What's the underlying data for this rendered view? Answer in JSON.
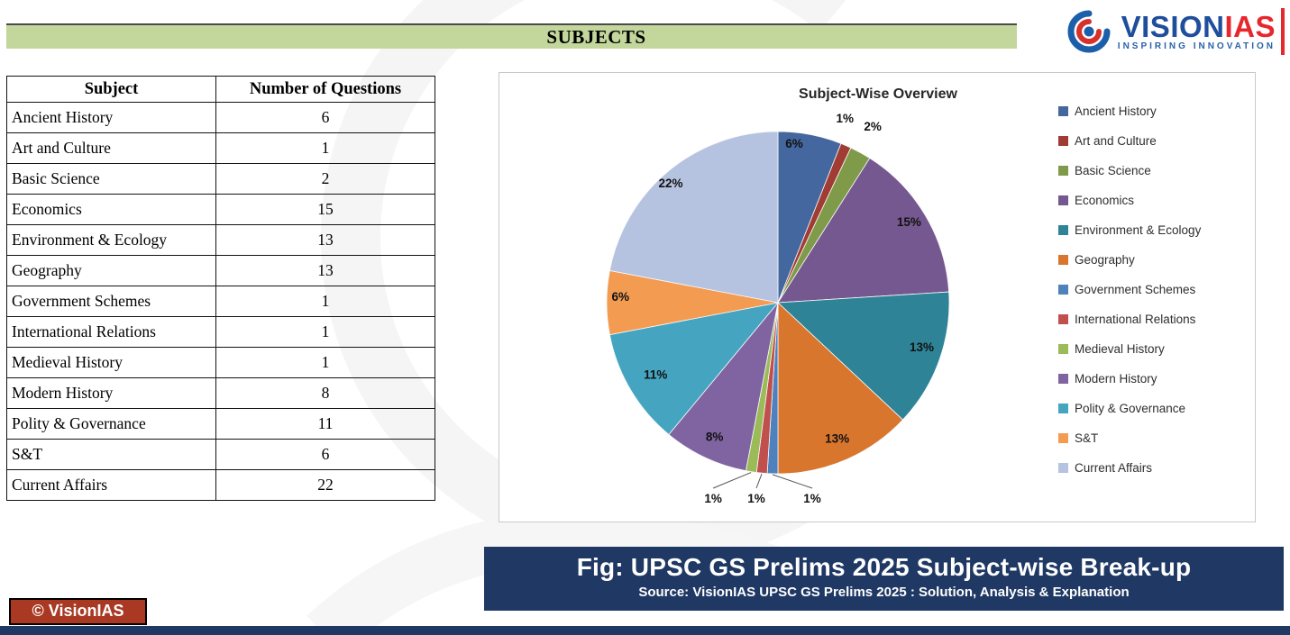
{
  "page": {
    "title": "SUBJECTS",
    "brand": {
      "name_part1": "VISION",
      "name_part2": "IAS",
      "tagline": "INSPIRING INNOVATION"
    },
    "caption": {
      "line1": "Fig: UPSC GS Prelims 2025 Subject-wise Break-up",
      "line2": "Source: VisionIAS UPSC GS Prelims 2025 : Solution, Analysis & Explanation"
    },
    "copyright": "© VisionIAS"
  },
  "table": {
    "headers": [
      "Subject",
      "Number of Questions"
    ],
    "rows": [
      [
        "Ancient History",
        6
      ],
      [
        "Art and Culture",
        1
      ],
      [
        "Basic Science",
        2
      ],
      [
        "Economics",
        15
      ],
      [
        "Environment & Ecology",
        13
      ],
      [
        "Geography",
        13
      ],
      [
        "Government Schemes",
        1
      ],
      [
        "International Relations",
        1
      ],
      [
        "Medieval History",
        1
      ],
      [
        "Modern History",
        8
      ],
      [
        "Polity & Governance",
        11
      ],
      [
        "S&T",
        6
      ],
      [
        "Current Affairs",
        22
      ]
    ]
  },
  "chart_data": {
    "type": "pie",
    "title": "Subject-Wise Overview",
    "categories": [
      "Ancient History",
      "Art and Culture",
      "Basic Science",
      "Economics",
      "Environment & Ecology",
      "Geography",
      "Government Schemes",
      "International Relations",
      "Medieval History",
      "Modern History",
      "Polity & Governance",
      "S&T",
      "Current Affairs"
    ],
    "values": [
      6,
      1,
      2,
      15,
      13,
      13,
      1,
      1,
      1,
      8,
      11,
      6,
      22
    ],
    "percent_labels": [
      "6%",
      "1%",
      "2%",
      "15%",
      "13%",
      "13%",
      "1%",
      "1%",
      "1%",
      "8%",
      "11%",
      "6%",
      "22%"
    ],
    "colors": [
      "#44679F",
      "#A13C34",
      "#7F9A48",
      "#75588F",
      "#2E8397",
      "#D8762E",
      "#4F81BD",
      "#C0504D",
      "#9BBB59",
      "#8064A2",
      "#45A5C1",
      "#F29B51",
      "#B5C3E0"
    ],
    "legend_position": "right",
    "start_angle_deg": 0,
    "direction": "clockwise"
  }
}
